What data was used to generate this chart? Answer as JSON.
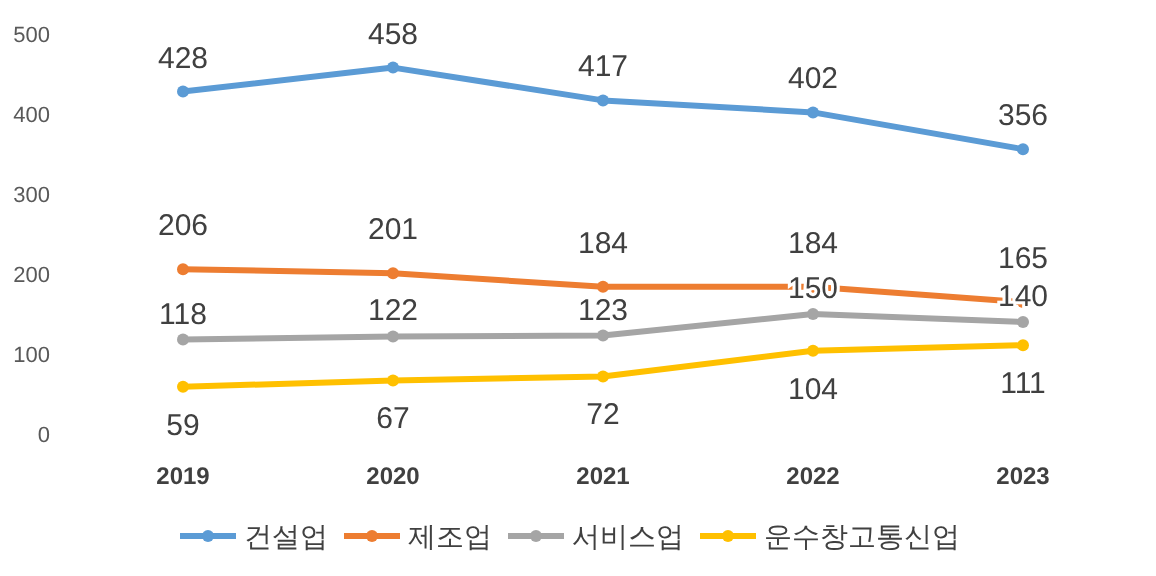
{
  "chart_data": {
    "type": "line",
    "categories": [
      "2019",
      "2020",
      "2021",
      "2022",
      "2023"
    ],
    "series": [
      {
        "name": "건설업",
        "color": "#5b9bd5",
        "values": [
          428,
          458,
          417,
          402,
          356
        ]
      },
      {
        "name": "제조업",
        "color": "#ed7d31",
        "values": [
          206,
          201,
          184,
          184,
          165
        ]
      },
      {
        "name": "서비스업",
        "color": "#a5a5a5",
        "values": [
          118,
          122,
          123,
          150,
          140
        ]
      },
      {
        "name": "운수창고통신업",
        "color": "#ffc000",
        "values": [
          59,
          67,
          72,
          104,
          111
        ]
      }
    ],
    "ylim": [
      0,
      500
    ],
    "yticks": [
      0,
      100,
      200,
      300,
      400,
      500
    ],
    "grid": false,
    "legend": "bottom",
    "marker": "circle",
    "line_style": "solid",
    "data_labels": true
  }
}
